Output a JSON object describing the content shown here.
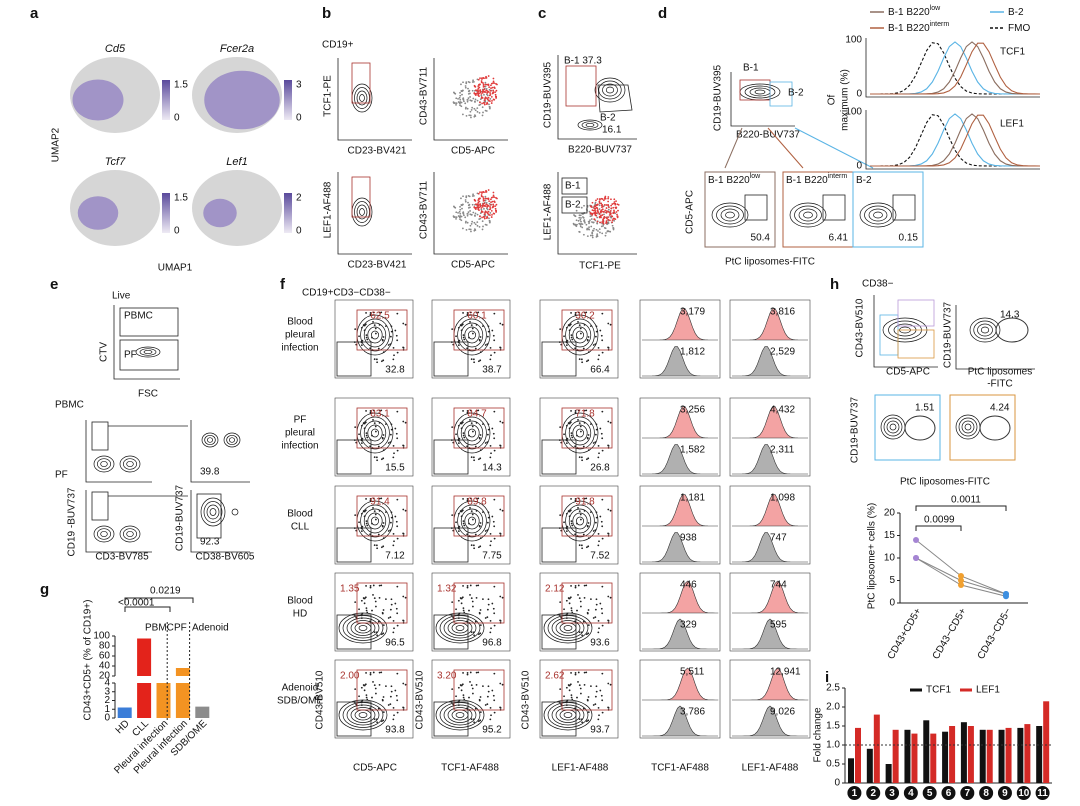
{
  "figure": {
    "a": {
      "label": "a",
      "genes": [
        "Cd5",
        "Fcer2a",
        "Tcf7",
        "Lef1"
      ],
      "scale_labels": [
        [
          "1.5",
          "0"
        ],
        [
          "3",
          "0"
        ],
        [
          "1.5",
          "0"
        ],
        [
          "2",
          "0"
        ]
      ],
      "x_label": "UMAP1",
      "y_label": "UMAP2"
    },
    "b": {
      "label": "b",
      "gate": "CD19+",
      "plots": [
        [
          "TCF1-PE",
          "CD23-BV421"
        ],
        [
          "CD43-BV711",
          "CD5-APC"
        ],
        [
          "LEF1-AF488",
          "CD23-BV421"
        ],
        [
          "CD43-BV711",
          "CD5-APC"
        ]
      ]
    },
    "c": {
      "label": "c",
      "top": {
        "y_label": "CD19-BUV395",
        "x_label": "B220-BUV737",
        "gates": [
          "B-1 37.3",
          "B-2",
          "16.1"
        ]
      },
      "bottom": {
        "y_label": "LEF1-AF488",
        "x_label": "TCF1-PE",
        "gates": [
          "B-1",
          "B-2"
        ]
      }
    },
    "d": {
      "label": "d",
      "top": {
        "y_label": "CD19-BUV395",
        "x_label": "B220-BUV737",
        "gates": [
          "B-1",
          "B-2"
        ]
      },
      "bottom": {
        "y_label": "CD5-APC",
        "x_label": "PtC liposomes-FITC",
        "gates": [
          {
            "text": "B-1 B220",
            "sup": "low"
          },
          {
            "text": "B-1 B220",
            "sup": "interm"
          },
          {
            "text": "B-2"
          }
        ],
        "percents": [
          "50.4",
          "6.41",
          "0.15"
        ]
      },
      "legend": [
        {
          "text": "B-1 B220",
          "sup": "low"
        },
        {
          "text": "B-2"
        },
        {
          "text": "B-1 B220",
          "sup": "interm"
        },
        {
          "text": "FMO"
        }
      ],
      "hist": {
        "y_label": [
          "Of",
          "maximum (%)"
        ],
        "ticks": [
          "100",
          "0"
        ],
        "tags": [
          "TCF1",
          "LEF1"
        ]
      }
    },
    "e": {
      "label": "e",
      "gate": "Live",
      "boxes": [
        "PBMC",
        "PF"
      ],
      "top": {
        "y_label": "CTV",
        "x_label": "FSC"
      },
      "rows": [
        {
          "name": "PBMC",
          "percent": "39.8"
        },
        {
          "name": "PF",
          "percent": "92.3"
        }
      ],
      "left": {
        "y_label": "CD19 -BUV737",
        "x_label": "CD3-BV785"
      },
      "right": {
        "y_label": "CD19-BUV737",
        "x_label": "CD38-BV605"
      }
    },
    "f": {
      "label": "f",
      "header": "CD19+CD3−CD38−",
      "y_label": "CD43-BV510",
      "x_labels": [
        "CD5-APC",
        "TCF1-AF488",
        "LEF1-AF488",
        "TCF1-AF488",
        "LEF1-AF488"
      ],
      "rows": [
        {
          "name": [
            "Blood",
            "pleural",
            "infection"
          ],
          "gated": [
            "62.5",
            "60.1",
            "30.2"
          ],
          "rest": [
            "32.8",
            "38.7",
            "66.4"
          ],
          "tcf1": [
            "3,179",
            "1,812"
          ],
          "lef1": [
            "3,816",
            "2,529"
          ]
        },
        {
          "name": [
            "PF",
            "pleural",
            "infection"
          ],
          "gated": [
            "83.1",
            "84.7",
            "71.8"
          ],
          "rest": [
            "15.5",
            "14.3",
            "26.8"
          ],
          "tcf1": [
            "3,256",
            "1,582"
          ],
          "lef1": [
            "4,432",
            "2,311"
          ]
        },
        {
          "name": [
            "Blood",
            "CLL"
          ],
          "gated": [
            "91.4",
            "89.8",
            "91.8"
          ],
          "rest": [
            "7.12",
            "7.75",
            "7.52"
          ],
          "tcf1": [
            "1,181",
            "938"
          ],
          "lef1": [
            "1,098",
            "747"
          ]
        },
        {
          "name": [
            "Blood",
            "HD"
          ],
          "gated": [
            "1.35",
            "1.32",
            "2.12"
          ],
          "rest": [
            "96.5",
            "96.8",
            "93.6"
          ],
          "tcf1": [
            "446",
            "329"
          ],
          "lef1": [
            "744",
            "595"
          ]
        },
        {
          "name": [
            "Adenoid",
            "SDB/OME"
          ],
          "gated": [
            "2.00",
            "3.20",
            "2.62"
          ],
          "rest": [
            "93.8",
            "95.2",
            "93.7"
          ],
          "tcf1": [
            "5,511",
            "3,786"
          ],
          "lef1": [
            "12,941",
            "9,026"
          ]
        }
      ]
    },
    "g": {
      "label": "g"
    },
    "h": {
      "label": "h",
      "gate": "CD38−",
      "top": {
        "y_label": "CD43-BV510",
        "x_label": "CD5-APC",
        "y2_label": "CD19-BUV737",
        "x2_label": [
          "PtC liposomes",
          "-FITC"
        ],
        "percent": "14.3"
      },
      "bottom": {
        "y_label": "CD19-BUV737",
        "x_label": "PtC liposomes-FITC",
        "percents": [
          "1.51",
          "4.24"
        ]
      }
    },
    "i": {
      "label": "i"
    }
  },
  "chart_data": [
    {
      "type": "bar",
      "y_label": "CD43+CD5+ (% of CD19+)",
      "categories": [
        "HD",
        "CLL",
        "Pleural infection",
        "Pleural infection",
        "SDB/OME"
      ],
      "values": [
        1.2,
        95,
        20,
        36,
        1.3
      ],
      "colors": [
        "#3b7dd8",
        "#e3231b",
        "#f39322",
        "#f39322",
        "#8c8c8c"
      ],
      "ylim": [
        0,
        100
      ],
      "axis_break": [
        4,
        20
      ],
      "yticks": [
        0,
        1,
        2,
        3,
        4,
        20,
        40,
        60,
        80,
        100
      ],
      "groups": [
        "PBMC",
        "PF",
        "Adenoid"
      ],
      "annotations": [
        "<0.0001",
        "0.0219"
      ]
    },
    {
      "type": "line",
      "y_label": "PtC liposome+ cells (%)",
      "categories": [
        "CD43+CD5+",
        "CD43−CD5+",
        "CD43−CD5−"
      ],
      "point_colors": [
        "#a585d3",
        "#f0a030",
        "#3d8fe0"
      ],
      "series": [
        {
          "values": [
            14,
            6,
            2
          ]
        },
        {
          "values": [
            10,
            5,
            2
          ]
        },
        {
          "values": [
            10,
            4,
            1.5
          ]
        }
      ],
      "ylim": [
        0,
        20
      ],
      "yticks": [
        0,
        5,
        10,
        15,
        20
      ],
      "annotations": [
        "0.0099",
        "0.0011"
      ]
    },
    {
      "type": "bar",
      "y_label": "Fold change",
      "categories": [
        "1",
        "2",
        "3",
        "4",
        "5",
        "6",
        "7",
        "8",
        "9",
        "10",
        "11"
      ],
      "series": [
        {
          "name": "TCF1",
          "color": "#111111",
          "values": [
            0.65,
            0.9,
            0.5,
            1.4,
            1.65,
            1.35,
            1.6,
            1.4,
            1.4,
            1.45,
            1.5
          ]
        },
        {
          "name": "LEF1",
          "color": "#d42a26",
          "values": [
            1.45,
            1.8,
            1.4,
            1.3,
            1.3,
            1.5,
            1.5,
            1.4,
            1.45,
            1.55,
            2.15
          ]
        }
      ],
      "ylim": [
        0,
        2.5
      ],
      "yticks": [
        0,
        0.5,
        {
          "value": 1,
          "label": "1.0"
        },
        1.5,
        {
          "value": 2,
          "label": "2.0"
        },
        2.5
      ],
      "reference_line": 1
    }
  ]
}
